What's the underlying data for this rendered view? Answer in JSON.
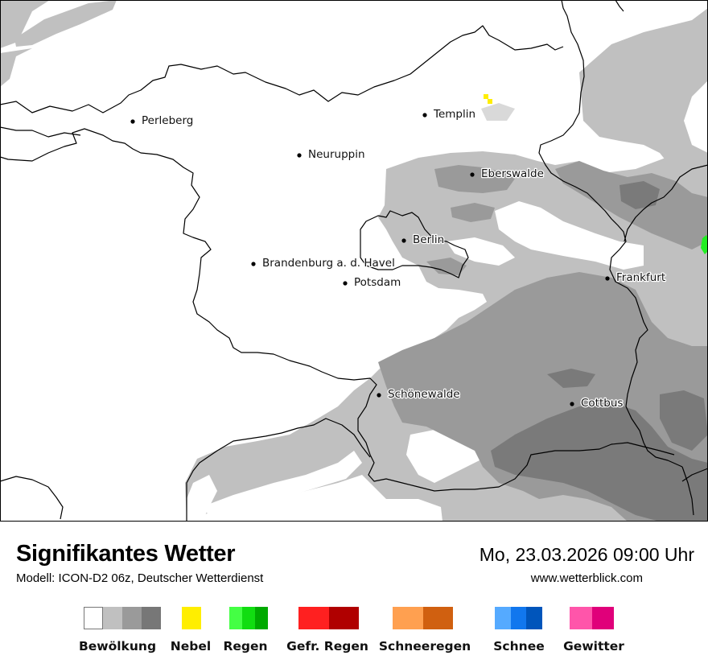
{
  "map": {
    "cities": [
      {
        "name": "Perleberg"
      },
      {
        "name": "Templin"
      },
      {
        "name": "Neuruppin"
      },
      {
        "name": "Eberswalde"
      },
      {
        "name": "Berlin"
      },
      {
        "name": "Brandenburg a. d. Havel"
      },
      {
        "name": "Potsdam"
      },
      {
        "name": "Frankfurt"
      },
      {
        "name": "Schönewalde"
      },
      {
        "name": "Cottbus"
      }
    ]
  },
  "footer": {
    "title": "Signifikantes Wetter",
    "subtitle": "Modell: ICON-D2 06z, Deutscher Wetterdienst",
    "datetime": "Mo, 23.03.2026 09:00 Uhr",
    "website": "www.wetterblick.com"
  },
  "legend": [
    {
      "label": "Bewölkung",
      "colors": [
        "#ffffff",
        "#c0c0c0",
        "#9a9a9a",
        "#777777"
      ]
    },
    {
      "label": "Nebel",
      "colors": [
        "#ffee00"
      ]
    },
    {
      "label": "Regen",
      "colors": [
        "#44ff44",
        "#11dd11",
        "#00aa00"
      ]
    },
    {
      "label": "Gefr. Regen",
      "colors": [
        "#ff2020",
        "#b00000"
      ]
    },
    {
      "label": "Schneeregen",
      "colors": [
        "#ffa050",
        "#d06010"
      ]
    },
    {
      "label": "Schnee",
      "colors": [
        "#55aaff",
        "#1177ee",
        "#0055bb"
      ]
    },
    {
      "label": "Gewitter",
      "colors": [
        "#ff55aa",
        "#e0007a"
      ]
    }
  ]
}
